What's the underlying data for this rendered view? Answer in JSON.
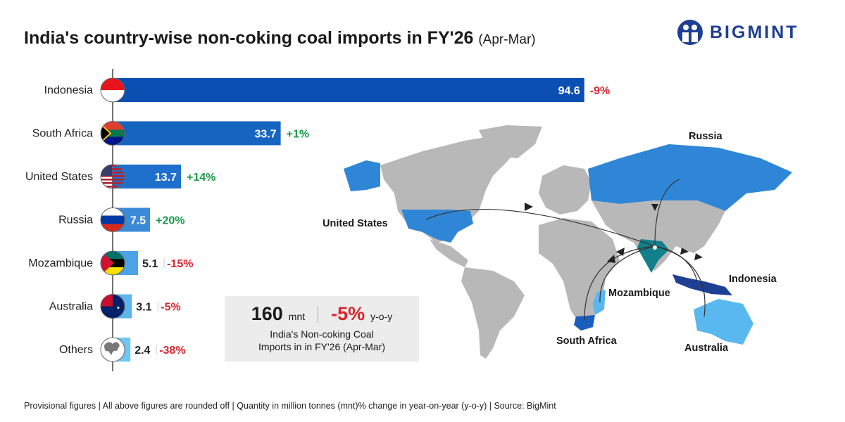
{
  "title": {
    "main": "India's country-wise non-coking coal imports in FY'26",
    "sub": "(Apr-Mar)"
  },
  "logo": {
    "text": "BIGMINT"
  },
  "chart_data": {
    "type": "bar",
    "orientation": "horizontal",
    "unit": "mnt",
    "categories": [
      "Indonesia",
      "South Africa",
      "United States",
      "Russia",
      "Mozambique",
      "Australia",
      "Others"
    ],
    "values": [
      94.6,
      33.7,
      13.7,
      7.5,
      5.1,
      3.1,
      2.4
    ],
    "labels": [
      "94.6",
      "33.7",
      "13.7",
      "7.5",
      "5.1",
      "3.1",
      "2.4"
    ],
    "yoy_change": [
      "-9%",
      "+1%",
      "+14%",
      "+20%",
      "-15%",
      "-5%",
      "-38%"
    ],
    "flags": [
      "indonesia-flag",
      "south-africa-flag",
      "united-states-flag",
      "russia-flag",
      "mozambique-flag",
      "australia-flag",
      "globe-icon"
    ],
    "bar_colors": [
      "#0b4fb3",
      "#1565c0",
      "#1f6fcc",
      "#3a8ad8",
      "#4da2e6",
      "#5cb5ee",
      "#6ec6f2"
    ],
    "positive_color": "#1a9a4a",
    "negative_color": "#d7262e"
  },
  "kpi": {
    "value": "160",
    "unit": "mnt",
    "change": "-5%",
    "change_label": "y-o-y",
    "desc_line1": "India's Non-coking Coal",
    "desc_line2": "Imports in in FY'26 (Apr-Mar)"
  },
  "map": {
    "labels": {
      "russia": "Russia",
      "united_states": "United States",
      "mozambique": "Mozambique",
      "indonesia": "Indonesia",
      "south_africa": "South Africa",
      "australia": "Australia"
    },
    "colors": {
      "land": "#b8b8b8",
      "highlight": "#2f86d6",
      "indonesia": "#1f3f94",
      "australia": "#5ab8f0",
      "south_africa": "#1a5fc0",
      "india": "#12808a"
    }
  },
  "footer": "Provisional figures | All above figures are rounded off | Quantity in million tonnes (mnt)% change in year-on-year (y-o-y) | Source: BigMint"
}
